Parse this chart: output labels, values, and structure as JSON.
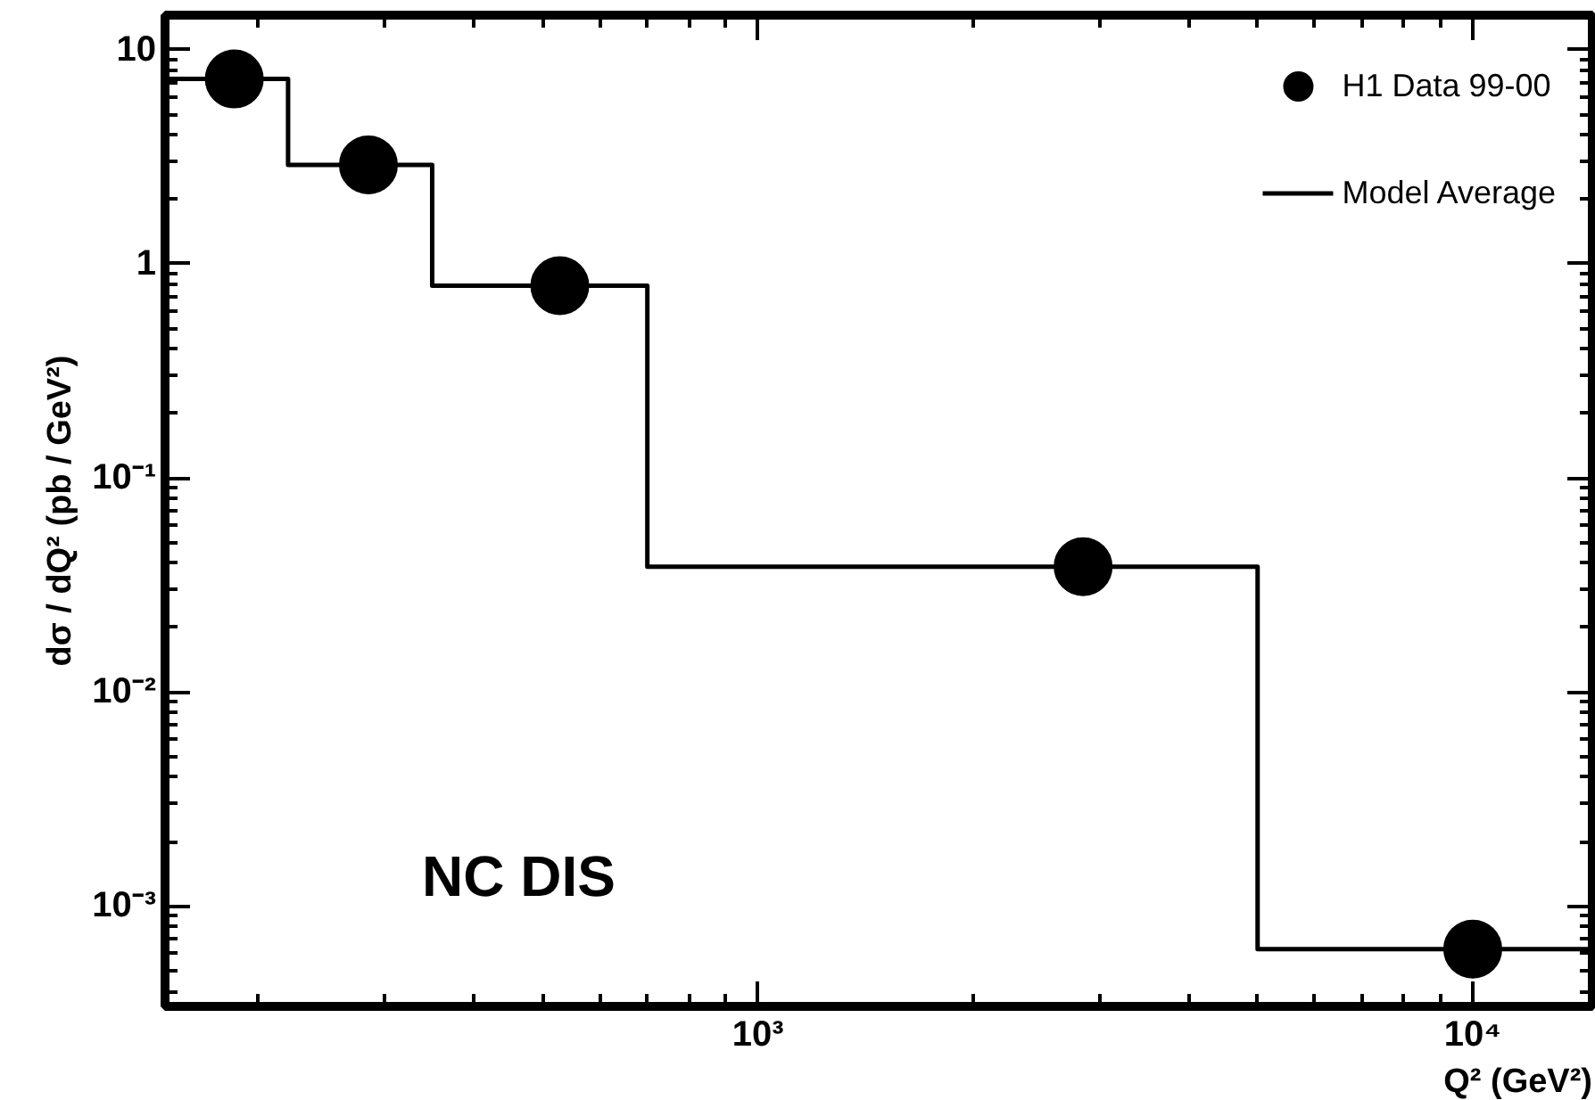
{
  "chart_data": {
    "type": "scatter",
    "xlabel": "Q² (GeV²)",
    "ylabel": "dσ / dQ² (pb / GeV²)",
    "log": "xy",
    "xlim": [
      148,
      14700
    ],
    "ylim": [
      0.00034,
      14.5
    ],
    "xticks": [
      {
        "value": 1000,
        "label": "10³"
      },
      {
        "value": 10000,
        "label": "10⁴"
      }
    ],
    "yticks": [
      {
        "value": 0.001,
        "label": "10⁻³"
      },
      {
        "value": 0.01,
        "label": "10⁻²"
      },
      {
        "value": 0.1,
        "label": "10⁻¹"
      },
      1,
      10
    ],
    "series": [
      {
        "name": "H1 Data 99-00",
        "color": "#000000",
        "marker": "circle",
        "x": [
          185,
          285,
          528,
          2850,
          10000
        ],
        "values": [
          7.3,
          2.9,
          0.79,
          0.0385,
          0.00063
        ]
      },
      {
        "name": "Model Average",
        "type": "step",
        "color": "#000000",
        "line_style": "solid",
        "x": [
          148,
          220,
          350,
          700,
          5000,
          14700
        ],
        "values": [
          7.3,
          2.9,
          0.79,
          0.0385,
          0.00063,
          0.00063
        ]
      }
    ],
    "annotations": [
      "NC DIS"
    ],
    "legend": "top right",
    "grid": false
  }
}
